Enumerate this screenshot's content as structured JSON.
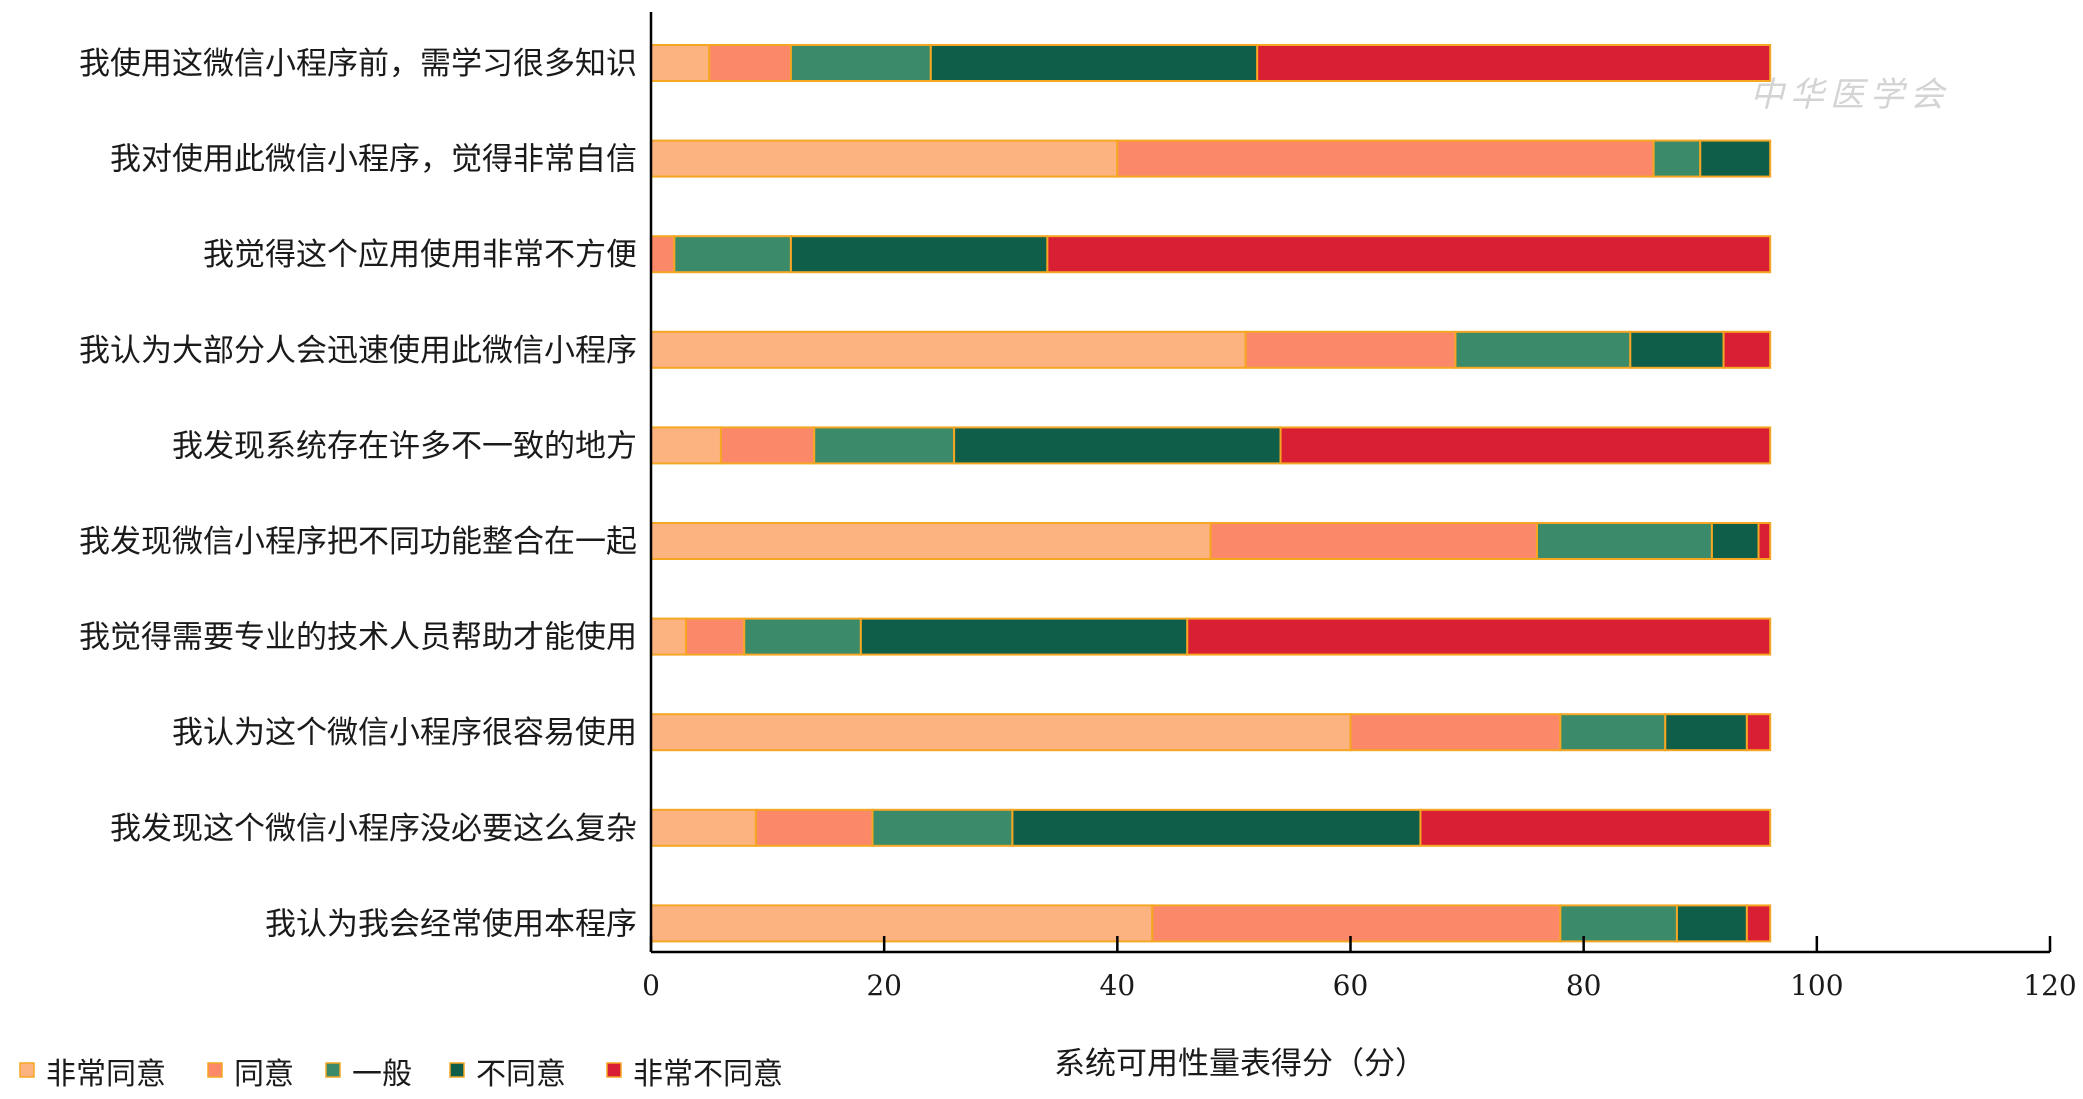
{
  "chart_data": {
    "type": "bar",
    "orientation": "horizontal",
    "stacked": true,
    "categories": [
      "我使用这微信小程序前，需学习很多知识",
      "我对使用此微信小程序，觉得非常自信",
      "我觉得这个应用使用非常不方便",
      "我认为大部分人会迅速使用此微信小程序",
      "我发现系统存在许多不一致的地方",
      "我发现微信小程序把不同功能整合在一起",
      "我觉得需要专业的技术人员帮助才能使用",
      "我认为这个微信小程序很容易使用",
      "我发现这个微信小程序没必要这么复杂",
      "我认为我会经常使用本程序"
    ],
    "series": [
      {
        "name": "非常同意",
        "color": "#FCB37F",
        "values": [
          5,
          40,
          0,
          51,
          6,
          48,
          3,
          60,
          9,
          43
        ]
      },
      {
        "name": "同意",
        "color": "#FB8969",
        "values": [
          7,
          46,
          2,
          18,
          8,
          28,
          5,
          18,
          10,
          35
        ]
      },
      {
        "name": "一般",
        "color": "#3B8A6A",
        "values": [
          12,
          4,
          10,
          15,
          12,
          15,
          10,
          9,
          12,
          10
        ]
      },
      {
        "name": "不同意",
        "color": "#0E5E4A",
        "values": [
          28,
          6,
          22,
          8,
          28,
          4,
          28,
          7,
          35,
          6
        ]
      },
      {
        "name": "非常不同意",
        "color": "#D81F34",
        "values": [
          44,
          0,
          62,
          4,
          42,
          1,
          50,
          2,
          30,
          2
        ]
      }
    ],
    "xlabel": "系统可用性量表得分（分）",
    "xlim": [
      0,
      120
    ],
    "xticks": [
      0,
      20,
      40,
      60,
      80,
      100,
      120
    ],
    "grid": false,
    "legend_position": "bottom-left",
    "bar_outline_color": "#F5A623",
    "watermark": "中华医学会"
  }
}
